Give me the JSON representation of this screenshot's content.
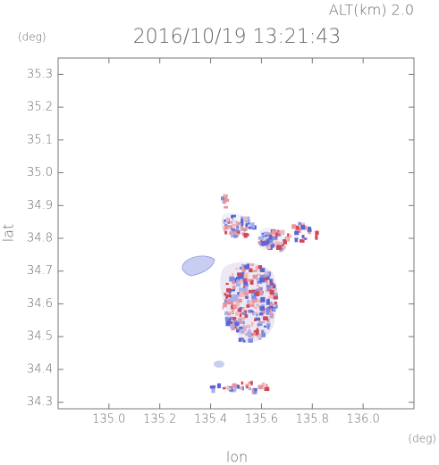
{
  "chart_data": {
    "type": "map",
    "title": "2016/10/19 13:21:43",
    "annotation": "ALT(km)  2.0",
    "xlabel": "lon",
    "ylabel": "lat",
    "x_unit": "(deg)",
    "y_unit": "(deg)",
    "xlim": [
      134.8,
      136.2
    ],
    "ylim": [
      34.28,
      35.35
    ],
    "xticks": [
      {
        "value": 135,
        "label": "135.0"
      },
      135.2,
      135.4,
      135.6,
      135.8,
      {
        "value": 136,
        "label": "136.0"
      }
    ],
    "yticks": [
      34.3,
      34.4,
      34.5,
      34.6,
      34.7,
      34.8,
      34.9,
      {
        "value": 35,
        "label": "35.0"
      },
      35.1,
      35.2,
      35.3
    ]
  }
}
